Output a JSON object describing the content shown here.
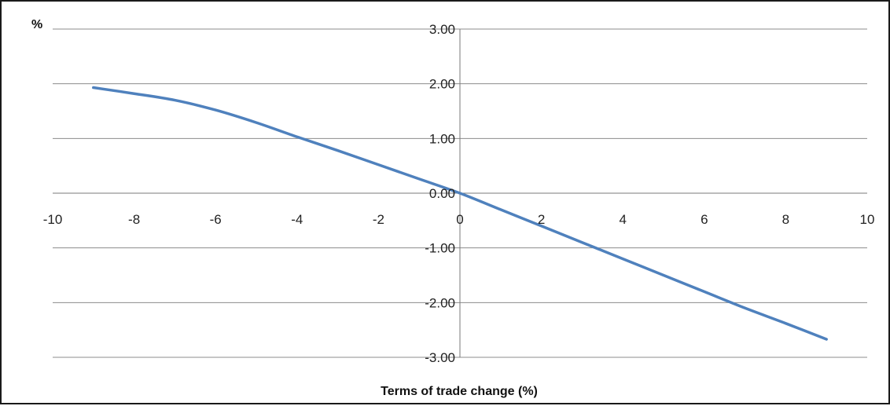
{
  "chart_data": {
    "type": "line",
    "title": "",
    "ylabel": "%",
    "xlabel": "Terms of trade change (%)",
    "xlim": [
      -10,
      10
    ],
    "ylim": [
      -3,
      3
    ],
    "x_ticks": [
      "-10",
      "-8",
      "-6",
      "-4",
      "-2",
      "0",
      "2",
      "4",
      "6",
      "8",
      "10"
    ],
    "y_ticks": [
      "3.00",
      "2.00",
      "1.00",
      "0.00",
      "-1.00",
      "-2.00",
      "-3.00"
    ],
    "grid": "horizontal",
    "legend": "none",
    "series": [
      {
        "color": "#4f81bd",
        "x": [
          -9,
          -8,
          -7,
          -6,
          -5,
          -4,
          -3,
          -2,
          -1,
          0,
          1,
          2,
          3,
          4,
          5,
          6,
          7,
          8,
          9
        ],
        "values": [
          1.93,
          1.82,
          1.7,
          1.52,
          1.29,
          1.03,
          0.78,
          0.52,
          0.26,
          0.0,
          -0.3,
          -0.6,
          -0.9,
          -1.2,
          -1.5,
          -1.8,
          -2.1,
          -2.38,
          -2.67
        ]
      }
    ]
  }
}
